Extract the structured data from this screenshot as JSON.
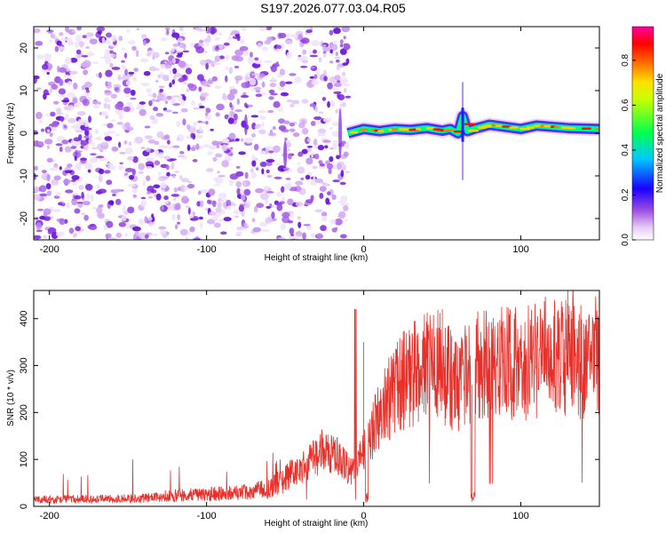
{
  "title": "S197.2026.077.03.04.R05",
  "chart_data": [
    {
      "type": "heatmap",
      "xlabel": "Height of straight line (km)",
      "ylabel": "Frequency (Hz)",
      "xlim": [
        -210,
        150
      ],
      "ylim": [
        -25,
        25
      ],
      "xticks": [
        -200,
        -100,
        0,
        100
      ],
      "yticks": [
        -20,
        -10,
        0,
        10,
        20
      ],
      "noise_region_x": [
        -210,
        -10
      ],
      "signal_region_x": [
        -10,
        150
      ],
      "signal_band_center_hz": [
        [
          -10,
          0
        ],
        [
          0,
          1
        ],
        [
          10,
          0.5
        ],
        [
          20,
          1
        ],
        [
          30,
          0.8
        ],
        [
          40,
          1.2
        ],
        [
          50,
          0.6
        ],
        [
          55,
          1.0
        ],
        [
          60,
          0
        ],
        [
          63,
          4
        ],
        [
          66,
          0.5
        ],
        [
          70,
          1
        ],
        [
          80,
          2
        ],
        [
          90,
          1.5
        ],
        [
          100,
          1
        ],
        [
          110,
          1.8
        ],
        [
          120,
          1.5
        ],
        [
          130,
          1.2
        ],
        [
          150,
          1
        ]
      ],
      "colorbar": {
        "label": "Normalized spectral amplitude",
        "ticks": [
          "0.0",
          "0.2",
          "0.4",
          "0.6",
          "0.8"
        ],
        "range": [
          0,
          0.95
        ]
      }
    },
    {
      "type": "line",
      "xlabel": "Height of straight line (km)",
      "ylabel": "SNR (10 * v/v)",
      "xlim": [
        -210,
        150
      ],
      "ylim": [
        0,
        460
      ],
      "xticks": [
        -200,
        -100,
        0,
        100
      ],
      "yticks": [
        0,
        100,
        200,
        300,
        400
      ],
      "color": "#e8302a",
      "envelope": [
        [
          -210,
          15
        ],
        [
          -140,
          18
        ],
        [
          -120,
          25
        ],
        [
          -80,
          30
        ],
        [
          -60,
          40
        ],
        [
          -45,
          70
        ],
        [
          -35,
          100
        ],
        [
          -25,
          130
        ],
        [
          -15,
          110
        ],
        [
          -8,
          80
        ],
        [
          0,
          120
        ],
        [
          5,
          170
        ],
        [
          15,
          240
        ],
        [
          25,
          290
        ],
        [
          35,
          310
        ],
        [
          45,
          330
        ],
        [
          55,
          300
        ],
        [
          60,
          270
        ],
        [
          65,
          300
        ],
        [
          70,
          330
        ],
        [
          80,
          320
        ],
        [
          90,
          330
        ],
        [
          100,
          330
        ],
        [
          110,
          335
        ],
        [
          120,
          340
        ],
        [
          130,
          340
        ],
        [
          140,
          335
        ],
        [
          150,
          330
        ]
      ],
      "spikes": [
        [
          -5,
          420
        ],
        [
          0,
          350
        ],
        [
          50,
          420
        ],
        [
          69,
          10
        ],
        [
          72,
          400
        ],
        [
          130,
          460
        ]
      ]
    }
  ]
}
